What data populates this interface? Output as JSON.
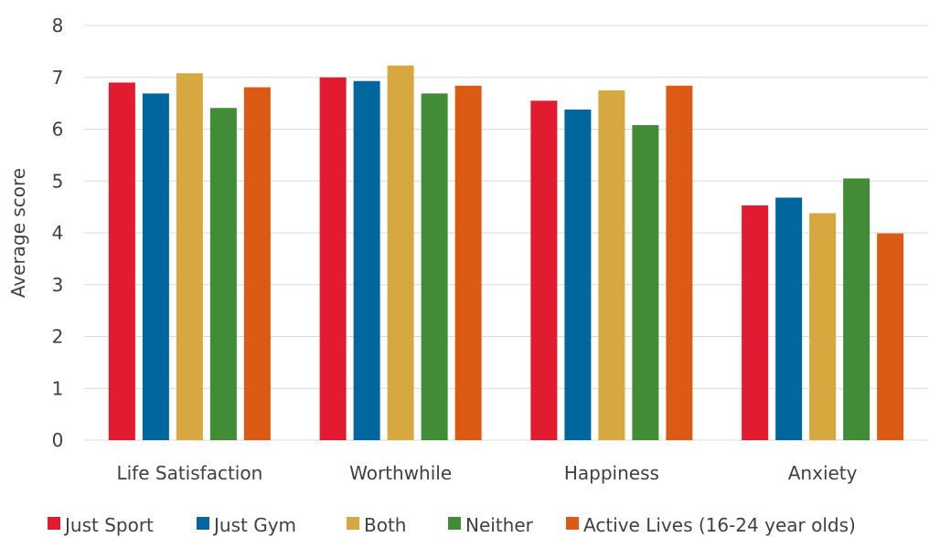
{
  "chart_data": {
    "type": "bar",
    "title": "",
    "xlabel": "",
    "ylabel": "Average score",
    "ylim": [
      0,
      8
    ],
    "yticks": [
      0,
      1,
      2,
      3,
      4,
      5,
      6,
      7,
      8
    ],
    "grid": true,
    "legend_position": "bottom",
    "categories": [
      "Life Satisfaction",
      "Worthwhile",
      "Happiness",
      "Anxiety"
    ],
    "series": [
      {
        "name": "Just Sport",
        "color": "#E31B30",
        "values": [
          6.9,
          7.0,
          6.55,
          4.53
        ]
      },
      {
        "name": "Just Gym",
        "color": "#00669E",
        "values": [
          6.69,
          6.93,
          6.38,
          4.68
        ]
      },
      {
        "name": "Both",
        "color": "#D8A840",
        "values": [
          7.08,
          7.23,
          6.75,
          4.38
        ]
      },
      {
        "name": "Neither",
        "color": "#428B37",
        "values": [
          6.41,
          6.69,
          6.08,
          5.05
        ]
      },
      {
        "name": "Active Lives (16-24 year olds)",
        "color": "#DD5A15",
        "values": [
          6.81,
          6.84,
          6.84,
          3.99
        ]
      }
    ]
  }
}
